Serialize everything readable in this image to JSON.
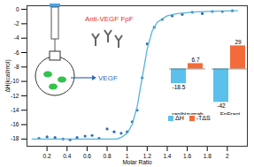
{
  "chart_data": [
    {
      "type": "scatter",
      "x_label": "Molar Ratio",
      "y_label": "ΔH(kcal/mol)",
      "xlim": [
        0,
        2.2
      ],
      "ylim": [
        -19,
        0.5
      ],
      "xticks": [
        0.2,
        0.4,
        0.6,
        0.8,
        1,
        1.2,
        1.4,
        1.6,
        1.8,
        2
      ],
      "yticks": [
        -18,
        -16,
        -14,
        -12,
        -10,
        -8,
        -6,
        -4,
        -2,
        0
      ],
      "annotations": [
        "Anti-VEGF FpF",
        "VEGF"
      ],
      "series": [
        {
          "type": "scatter",
          "color": "#2f6db5",
          "x": [
            0.12,
            0.2,
            0.28,
            0.36,
            0.43,
            0.5,
            0.58,
            0.65,
            0.72,
            0.8,
            0.87,
            0.94,
            1.0,
            1.05,
            1.1,
            1.15,
            1.2,
            1.27,
            1.35,
            1.45,
            1.55,
            1.65,
            1.75,
            1.85,
            1.95,
            2.05
          ],
          "values": [
            -17.9,
            -17.7,
            -17.8,
            -18.0,
            -18.1,
            -17.8,
            -17.6,
            -17.5,
            -17.9,
            -16.6,
            -17.0,
            -17.2,
            -17.0,
            -15.6,
            -14.0,
            -9.5,
            -4.8,
            -2.5,
            -1.4,
            -0.9,
            -0.7,
            -0.4,
            -0.6,
            -0.3,
            -0.3,
            -0.2
          ]
        },
        {
          "type": "line",
          "color": "#56b4d9",
          "x": [
            0.05,
            0.3,
            0.6,
            0.9,
            0.95,
            1.0,
            1.05,
            1.1,
            1.15,
            1.2,
            1.25,
            1.3,
            1.4,
            1.5,
            1.7,
            1.9,
            2.1
          ],
          "values": [
            -18.0,
            -18.0,
            -18.0,
            -18.0,
            -17.7,
            -17.2,
            -16.0,
            -13.5,
            -9.5,
            -5.5,
            -3.0,
            -1.8,
            -0.9,
            -0.6,
            -0.35,
            -0.25,
            -0.2
          ]
        }
      ]
    },
    {
      "type": "bar",
      "categories": [
        "ranibizumab",
        "FpFrani"
      ],
      "series": [
        {
          "name": "ΔH",
          "color": "#5bc0eb",
          "values": [
            -18.5,
            -42
          ]
        },
        {
          "name": "-TΔS",
          "color": "#f26b38",
          "values": [
            6.7,
            29
          ]
        }
      ],
      "ylim": [
        -45,
        35
      ],
      "data_labels": true,
      "tick_labels": "x",
      "legend": "bottom"
    }
  ]
}
